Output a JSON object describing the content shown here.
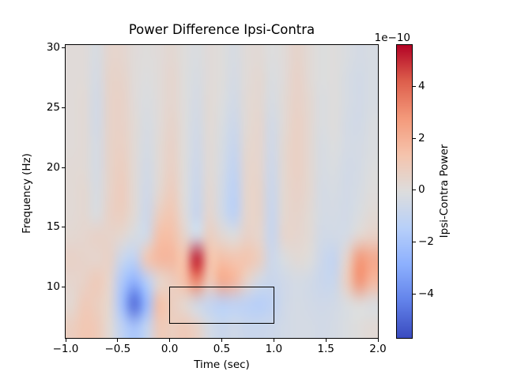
{
  "chart_data": {
    "type": "heatmap",
    "title": "Power Difference Ipsi-Contra",
    "xlabel": "Time (sec)",
    "ylabel": "Frequency (Hz)",
    "colorbar_label": "Ipsi-Contra Power",
    "scale_offset_text": "1e−10",
    "colormap": "coolwarm",
    "grid_lines": false,
    "xlim": [
      -1.0,
      2.0
    ],
    "ylim": [
      5.75,
      30.25
    ],
    "value_unit": "1e-10",
    "vmin": -5.7,
    "vmax": 5.6,
    "x_ticks": [
      {
        "value": -1.0,
        "label": "−1.0"
      },
      {
        "value": -0.5,
        "label": "−0.5"
      },
      {
        "value": 0.0,
        "label": "0.0"
      },
      {
        "value": 0.5,
        "label": "0.5"
      },
      {
        "value": 1.0,
        "label": "1.0"
      },
      {
        "value": 1.5,
        "label": "1.5"
      },
      {
        "value": 2.0,
        "label": "2.0"
      }
    ],
    "y_ticks": [
      {
        "value": 30,
        "label": "30"
      },
      {
        "value": 25,
        "label": "25"
      },
      {
        "value": 20,
        "label": "20"
      },
      {
        "value": 15,
        "label": "15"
      },
      {
        "value": 10,
        "label": "10"
      }
    ],
    "colorbar_ticks": [
      {
        "value": 4,
        "label": "4"
      },
      {
        "value": 2,
        "label": "2"
      },
      {
        "value": 0,
        "label": "0"
      },
      {
        "value": -2,
        "label": "−2"
      },
      {
        "value": -4,
        "label": "−4"
      }
    ],
    "annotation_box": {
      "time_start": 0.0,
      "time_end": 1.0,
      "freq_start": 7.0,
      "freq_end": 10.0
    },
    "grid": {
      "times": [
        -1.0,
        -0.875,
        -0.75,
        -0.625,
        -0.5,
        -0.375,
        -0.25,
        -0.125,
        0.0,
        0.125,
        0.25,
        0.375,
        0.5,
        0.625,
        0.75,
        0.875,
        1.0,
        1.125,
        1.25,
        1.375,
        1.5,
        1.625,
        1.75,
        1.875,
        2.0
      ],
      "freqs_top_to_bottom": [
        30,
        28,
        26,
        24,
        22,
        20,
        18,
        16,
        14,
        12,
        10,
        8,
        6
      ],
      "values": [
        [
          0.1,
          0.1,
          -0.3,
          0.4,
          0.4,
          0.1,
          0.0,
          0.1,
          0.3,
          0.0,
          -0.2,
          0.1,
          0.0,
          -0.3,
          0.1,
          0.2,
          -0.1,
          0.1,
          0.5,
          0.2,
          -0.1,
          0.0,
          -0.2,
          -0.4,
          -0.3
        ],
        [
          0.1,
          0.1,
          -0.4,
          0.5,
          0.5,
          0.1,
          -0.1,
          0.1,
          0.4,
          0.0,
          -0.3,
          0.1,
          0.0,
          -0.4,
          0.1,
          0.3,
          -0.2,
          0.1,
          0.6,
          0.2,
          -0.1,
          0.0,
          -0.3,
          -0.5,
          -0.3
        ],
        [
          0.1,
          0.2,
          -0.5,
          0.5,
          0.6,
          0.1,
          -0.2,
          0.1,
          0.4,
          0.0,
          -0.4,
          0.2,
          -0.1,
          -0.5,
          0.2,
          0.3,
          -0.3,
          0.2,
          0.6,
          0.3,
          -0.2,
          0.0,
          -0.3,
          -0.5,
          -0.3
        ],
        [
          0.1,
          0.2,
          -0.5,
          0.5,
          0.6,
          0.2,
          -0.3,
          0.1,
          0.5,
          0.0,
          -0.5,
          0.2,
          -0.2,
          -0.7,
          0.2,
          0.4,
          -0.5,
          0.2,
          0.7,
          0.3,
          -0.2,
          0.0,
          -0.4,
          -0.5,
          -0.2
        ],
        [
          0.1,
          0.2,
          -0.4,
          0.5,
          0.7,
          0.2,
          -0.4,
          0.2,
          0.6,
          0.0,
          -0.6,
          0.2,
          -0.3,
          -0.9,
          0.3,
          0.4,
          -0.6,
          0.3,
          0.7,
          0.3,
          -0.3,
          -0.1,
          -0.4,
          -0.4,
          -0.2
        ],
        [
          0.2,
          0.2,
          -0.4,
          0.5,
          0.8,
          0.2,
          -0.5,
          0.2,
          0.7,
          0.0,
          -0.7,
          0.2,
          -0.4,
          -1.1,
          0.4,
          0.4,
          -0.7,
          0.3,
          0.7,
          0.3,
          -0.3,
          -0.2,
          -0.5,
          -0.4,
          -0.1
        ],
        [
          0.2,
          0.3,
          -0.3,
          0.5,
          0.9,
          0.2,
          -0.6,
          0.3,
          0.9,
          0.0,
          -0.8,
          0.3,
          -0.5,
          -1.3,
          0.4,
          0.5,
          -0.8,
          0.3,
          0.6,
          0.3,
          -0.4,
          -0.3,
          -0.5,
          -0.3,
          0.0
        ],
        [
          0.2,
          0.3,
          -0.2,
          0.6,
          0.8,
          0.2,
          -0.7,
          0.8,
          1.2,
          0.1,
          -0.9,
          0.4,
          -0.5,
          -1.3,
          0.4,
          0.5,
          -0.9,
          0.3,
          0.5,
          0.2,
          -0.4,
          -0.4,
          -0.5,
          -0.2,
          0.2
        ],
        [
          0.3,
          0.4,
          0.6,
          0.5,
          0.3,
          -0.3,
          -0.5,
          1.5,
          1.5,
          0.5,
          -0.5,
          0.8,
          0.3,
          0.0,
          0.6,
          0.4,
          -0.9,
          0.4,
          0.4,
          0.2,
          -0.5,
          -0.5,
          -0.4,
          0.3,
          0.6
        ],
        [
          0.6,
          0.5,
          0.4,
          0.6,
          -0.8,
          -1.2,
          1.2,
          1.8,
          1.8,
          1.5,
          5.2,
          1.5,
          1.5,
          1.3,
          1.3,
          0.8,
          -0.7,
          -0.2,
          0.2,
          0.0,
          -0.7,
          -1.0,
          0.5,
          2.8,
          2.3
        ],
        [
          0.4,
          0.6,
          1.0,
          0.4,
          -1.8,
          -2.8,
          -1.5,
          0.3,
          0.8,
          1.5,
          3.2,
          1.0,
          2.2,
          1.8,
          0.5,
          -0.5,
          -0.8,
          -0.6,
          -0.4,
          -0.5,
          -0.8,
          -0.8,
          0.8,
          2.9,
          1.8
        ],
        [
          0.3,
          1.0,
          0.8,
          0.3,
          -2.2,
          -4.8,
          -2.5,
          1.5,
          0.8,
          0.3,
          -0.5,
          -1.0,
          -1.3,
          -1.2,
          -1.3,
          -1.5,
          -1.2,
          -0.6,
          -0.4,
          -0.5,
          -0.6,
          -0.5,
          -0.2,
          0.0,
          -0.2
        ],
        [
          0.8,
          1.2,
          1.0,
          0.2,
          -1.2,
          -2.0,
          -1.0,
          1.0,
          0.8,
          1.0,
          0.6,
          -0.4,
          -0.8,
          -0.6,
          -0.8,
          -0.8,
          -0.7,
          -0.5,
          -0.4,
          -0.4,
          -0.5,
          -0.4,
          -0.2,
          0.0,
          0.2
        ]
      ]
    },
    "colors": {
      "colormap_min": "#3b4cc0",
      "colormap_mid": "#dddddd",
      "colormap_max": "#b40426",
      "annotation_stroke": "#000000",
      "background": "#ffffff"
    }
  }
}
